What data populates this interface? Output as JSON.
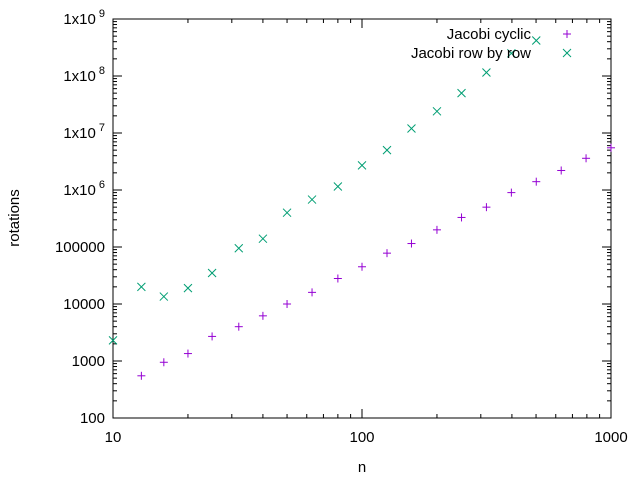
{
  "chart_data": {
    "type": "scatter",
    "title": "",
    "xlabel": "n",
    "ylabel": "rotations",
    "xscale": "log",
    "yscale": "log",
    "xlim": [
      10,
      1000
    ],
    "ylim": [
      100,
      1000000000
    ],
    "grid": false,
    "legend_position": "top-right",
    "x_ticks": [
      {
        "value": 10,
        "label": "10"
      },
      {
        "value": 100,
        "label": "100"
      },
      {
        "value": 1000,
        "label": "1000"
      }
    ],
    "y_ticks": [
      {
        "value": 100,
        "label": "100"
      },
      {
        "value": 1000,
        "label": "1000"
      },
      {
        "value": 10000,
        "label": "10000"
      },
      {
        "value": 100000,
        "label": "100000"
      },
      {
        "value": 1000000,
        "base": "1x10",
        "exp": "6"
      },
      {
        "value": 10000000,
        "base": "1x10",
        "exp": "7"
      },
      {
        "value": 100000000,
        "base": "1x10",
        "exp": "8"
      },
      {
        "value": 1000000000,
        "base": "1x10",
        "exp": "9"
      }
    ],
    "series": [
      {
        "name": "Jacobi cyclic",
        "marker": "plus",
        "color": "#9400d3",
        "x": [
          13,
          16,
          20,
          25,
          32,
          40,
          50,
          63,
          80,
          100,
          126,
          158,
          200,
          251,
          316,
          398,
          501,
          631,
          794,
          1000
        ],
        "y": [
          550,
          950,
          1350,
          2700,
          4000,
          6200,
          10000,
          16000,
          28000,
          45000,
          78000,
          115000,
          200000,
          330000,
          500000,
          900000,
          1400000,
          2200000,
          3600000,
          5500000
        ]
      },
      {
        "name": "Jacobi row by row",
        "marker": "cross",
        "color": "#009e73",
        "x": [
          10,
          13,
          16,
          20,
          25,
          32,
          40,
          50,
          63,
          80,
          100,
          126,
          158,
          200,
          251,
          316,
          398,
          501
        ],
        "y": [
          2300,
          20000,
          13500,
          19000,
          35000,
          95000,
          140000,
          400000,
          680000,
          1150000,
          2700000,
          5000000,
          12000000,
          24000000,
          50000000,
          115000000,
          250000000,
          420000000
        ]
      }
    ]
  }
}
